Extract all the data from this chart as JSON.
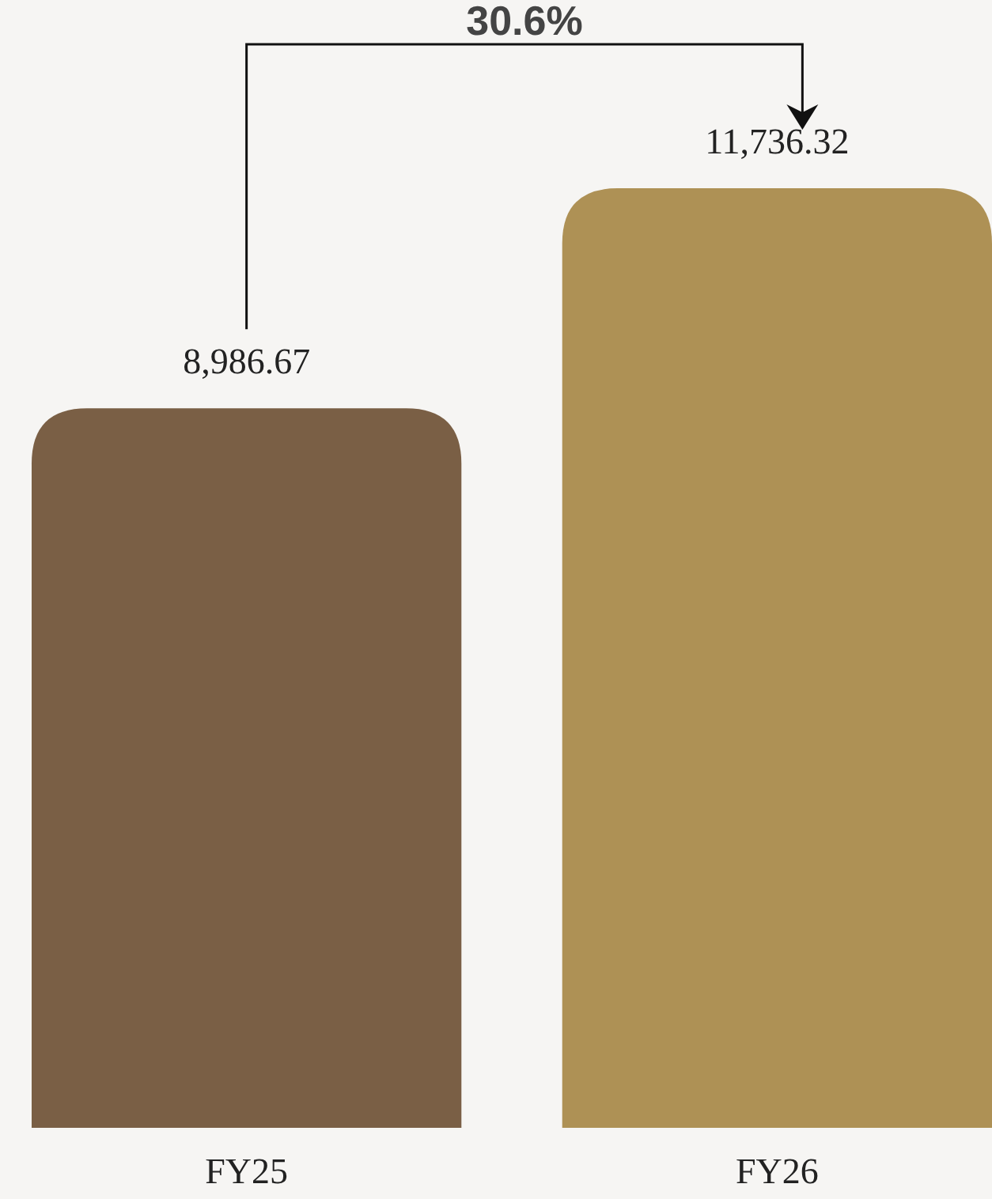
{
  "chart_data": {
    "type": "bar",
    "categories": [
      "FY25",
      "FY26"
    ],
    "values": [
      8986.67,
      11736.32
    ],
    "value_labels": [
      "8,986.67",
      "11,736.32"
    ],
    "colors": [
      "#7a5f45",
      "#ae9155"
    ],
    "annotations": [
      "30.6%"
    ]
  }
}
